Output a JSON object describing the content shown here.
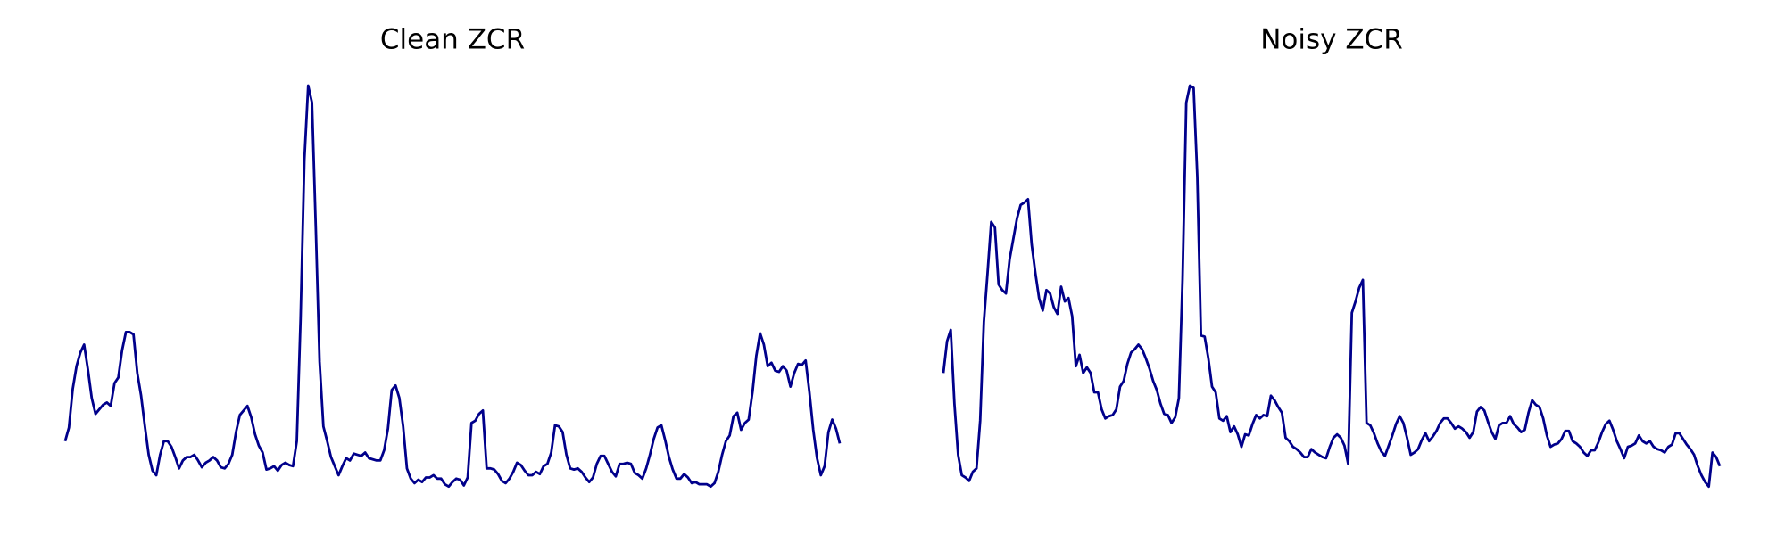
{
  "chart_data": [
    {
      "type": "line",
      "title": "Clean ZCR",
      "color": "#00008b",
      "ylim": [
        0,
        365
      ],
      "values": [
        52,
        64,
        98,
        118,
        130,
        137,
        115,
        90,
        76,
        80,
        84,
        86,
        83,
        103,
        108,
        132,
        148,
        148,
        146,
        112,
        92,
        65,
        40,
        26,
        22,
        40,
        52,
        52,
        47,
        38,
        28,
        35,
        38,
        38,
        40,
        35,
        29,
        33,
        35,
        38,
        35,
        29,
        28,
        32,
        40,
        60,
        75,
        79,
        83,
        73,
        58,
        48,
        42,
        27,
        28,
        30,
        26,
        31,
        33,
        31,
        30,
        52,
        160,
        300,
        365,
        350,
        240,
        122,
        65,
        52,
        38,
        30,
        22,
        30,
        37,
        35,
        41,
        40,
        39,
        42,
        37,
        36,
        35,
        35,
        44,
        63,
        97,
        101,
        90,
        65,
        28,
        19,
        15,
        18,
        16,
        20,
        20,
        22,
        19,
        19,
        14,
        12,
        16,
        19,
        18,
        13,
        20,
        68,
        70,
        76,
        79,
        28,
        28,
        27,
        23,
        17,
        15,
        19,
        25,
        33,
        31,
        26,
        22,
        22,
        25,
        23,
        30,
        32,
        42,
        66,
        65,
        60,
        40,
        28,
        27,
        28,
        25,
        20,
        16,
        20,
        32,
        39,
        39,
        32,
        25,
        21,
        32,
        32,
        33,
        32,
        24,
        22,
        19,
        28,
        40,
        54,
        64,
        66,
        53,
        38,
        27,
        19,
        19,
        23,
        20,
        15,
        16,
        14,
        14,
        14,
        12,
        15,
        25,
        40,
        52,
        57,
        74,
        77,
        62,
        68,
        71,
        95,
        127,
        147,
        137,
        118,
        121,
        114,
        113,
        118,
        114,
        100,
        112,
        120,
        119,
        123,
        95,
        62,
        37,
        22,
        30,
        60,
        71,
        63,
        50
      ]
    },
    {
      "type": "line",
      "title": "Noisy ZCR",
      "color": "#00008b",
      "ylim": [
        0,
        365
      ],
      "values": [
        112,
        140,
        150,
        85,
        40,
        22,
        20,
        17,
        25,
        28,
        70,
        157,
        200,
        245,
        240,
        190,
        185,
        182,
        212,
        230,
        248,
        260,
        262,
        265,
        225,
        200,
        178,
        167,
        185,
        182,
        170,
        164,
        188,
        175,
        178,
        162,
        118,
        128,
        112,
        117,
        112,
        95,
        95,
        80,
        72,
        74,
        75,
        80,
        100,
        105,
        120,
        130,
        133,
        137,
        133,
        125,
        116,
        105,
        97,
        85,
        76,
        75,
        68,
        73,
        90,
        195,
        350,
        365,
        363,
        285,
        145,
        144,
        125,
        100,
        95,
        72,
        70,
        74,
        60,
        65,
        58,
        47,
        58,
        57,
        67,
        75,
        72,
        75,
        74,
        92,
        88,
        82,
        77,
        55,
        52,
        47,
        45,
        42,
        38,
        38,
        45,
        42,
        40,
        38,
        37,
        47,
        55,
        58,
        55,
        48,
        32,
        165,
        175,
        187,
        194,
        68,
        66,
        59,
        50,
        43,
        39,
        48,
        57,
        67,
        74,
        68,
        55,
        40,
        42,
        45,
        53,
        59,
        52,
        56,
        61,
        68,
        72,
        72,
        68,
        63,
        65,
        63,
        60,
        55,
        60,
        78,
        82,
        79,
        69,
        60,
        54,
        66,
        68,
        68,
        74,
        67,
        64,
        60,
        62,
        77,
        88,
        84,
        82,
        72,
        57,
        47,
        49,
        50,
        54,
        61,
        61,
        52,
        50,
        47,
        42,
        39,
        44,
        44,
        51,
        60,
        67,
        70,
        62,
        52,
        45,
        37,
        47,
        48,
        50,
        57,
        52,
        50,
        52,
        47,
        45,
        44,
        42,
        47,
        49,
        59,
        59,
        54,
        49,
        45,
        40,
        30,
        22,
        16,
        12,
        42,
        38,
        30
      ]
    }
  ]
}
